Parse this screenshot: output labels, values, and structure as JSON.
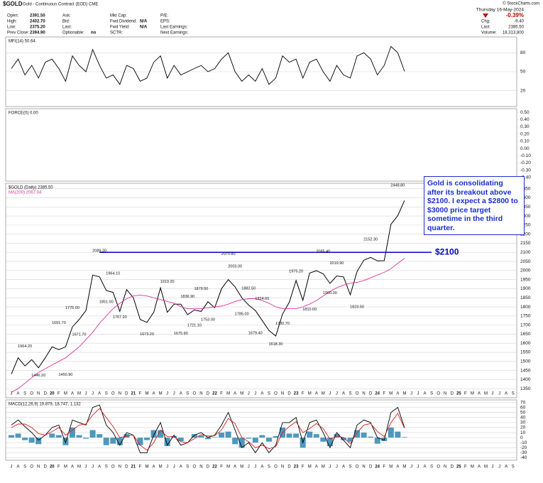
{
  "header": {
    "symbol": "$GOLD",
    "name": "Gold - Continuous Contract (EOD) CME",
    "source": "© StockCharts.com",
    "info": [
      [
        [
          "Open:",
          "2391.50"
        ],
        [
          "High:",
          "2402.70"
        ],
        [
          "Low:",
          "2375.20"
        ],
        [
          "Prev Close:",
          "2394.90"
        ]
      ],
      [
        [
          "Ask:"
        ],
        [
          "Bid:"
        ],
        [
          "Last:"
        ],
        [
          "Optionable:",
          "no"
        ]
      ],
      [
        [
          "Mkt Cap:"
        ],
        [
          "Fwd Dividend:",
          "N/A"
        ],
        [
          "Fwd Yield:",
          "N/A"
        ],
        [
          "SCTR:"
        ]
      ],
      [
        [
          "P/E:"
        ],
        [
          "EPS:"
        ],
        [
          "Last Earnings:"
        ],
        [
          "Next Earnings:"
        ]
      ]
    ],
    "date": "Thursday 16-May-2024",
    "change_pct": "-0.39%",
    "stats": [
      [
        "Chg:",
        "-9.40"
      ],
      [
        "Last:",
        "2385.50"
      ],
      [
        "Volume:",
        "18,313,800"
      ]
    ]
  },
  "chart_data": [
    {
      "type": "line",
      "grid": true,
      "x": [
        "2019-07",
        "2019-08",
        "2019-09",
        "2019-10",
        "2019-11",
        "2019-12",
        "2020-01",
        "2020-02",
        "2020-03",
        "2020-04",
        "2020-05",
        "2020-06",
        "2020-07",
        "2020-08",
        "2020-09",
        "2020-10",
        "2020-11",
        "2020-12",
        "2021-01",
        "2021-02",
        "2021-03",
        "2021-04",
        "2021-05",
        "2021-06",
        "2021-07",
        "2021-08",
        "2021-09",
        "2021-10",
        "2021-11",
        "2021-12",
        "2022-01",
        "2022-02",
        "2022-03",
        "2022-04",
        "2022-05",
        "2022-06",
        "2022-07",
        "2022-08",
        "2022-09",
        "2022-10",
        "2022-11",
        "2022-12",
        "2023-01",
        "2023-02",
        "2023-03",
        "2023-04",
        "2023-05",
        "2023-06",
        "2023-07",
        "2023-08",
        "2023-09",
        "2023-10",
        "2023-11",
        "2023-12",
        "2024-01",
        "2024-02",
        "2024-03",
        "2024-04",
        "2024-05"
      ],
      "series": [
        {
          "name": "MFI(14) 50.64",
          "color": "#000000",
          "values": [
            55,
            70,
            45,
            60,
            40,
            65,
            70,
            55,
            35,
            75,
            60,
            50,
            85,
            60,
            40,
            45,
            30,
            60,
            55,
            35,
            40,
            65,
            75,
            40,
            60,
            45,
            50,
            55,
            60,
            50,
            55,
            70,
            80,
            50,
            35,
            45,
            35,
            55,
            30,
            40,
            75,
            65,
            70,
            40,
            65,
            70,
            50,
            35,
            60,
            45,
            40,
            75,
            80,
            70,
            45,
            60,
            90,
            80,
            50.64
          ]
        }
      ],
      "ylim": [
        -5,
        105
      ],
      "yticks": [
        80,
        50,
        20
      ]
    },
    {
      "type": "line",
      "title": "FORCE(0) 0.00",
      "grid": false,
      "ylim": [
        -0.45,
        0.55
      ],
      "yticks": [
        {
          "value": 0.5,
          "label": "0.50"
        },
        {
          "value": 0.4,
          "label": "0.40"
        },
        {
          "value": 0.3,
          "label": "0.30"
        },
        {
          "value": 0.2,
          "label": "0.20"
        },
        {
          "value": 0.1,
          "label": "0.10"
        },
        {
          "value": 0,
          "label": "0.00"
        },
        {
          "value": -0.1,
          "label": "-0.10"
        },
        {
          "value": -0.2,
          "label": "-0.20"
        },
        {
          "value": -0.3,
          "label": "-0.30"
        },
        {
          "value": -0.4,
          "label": "-0.40"
        }
      ]
    },
    {
      "type": "line",
      "grid": true,
      "x": [
        "2019-07",
        "2019-08",
        "2019-09",
        "2019-10",
        "2019-11",
        "2019-12",
        "2020-01",
        "2020-02",
        "2020-03",
        "2020-04",
        "2020-05",
        "2020-06",
        "2020-07",
        "2020-08",
        "2020-09",
        "2020-10",
        "2020-11",
        "2020-12",
        "2021-01",
        "2021-02",
        "2021-03",
        "2021-04",
        "2021-05",
        "2021-06",
        "2021-07",
        "2021-08",
        "2021-09",
        "2021-10",
        "2021-11",
        "2021-12",
        "2022-01",
        "2022-02",
        "2022-03",
        "2022-04",
        "2022-05",
        "2022-06",
        "2022-07",
        "2022-08",
        "2022-09",
        "2022-10",
        "2022-11",
        "2022-12",
        "2023-01",
        "2023-02",
        "2023-03",
        "2023-04",
        "2023-05",
        "2023-06",
        "2023-07",
        "2023-08",
        "2023-09",
        "2023-10",
        "2023-11",
        "2023-12",
        "2024-01",
        "2024-02",
        "2024-03",
        "2024-04",
        "2024-05"
      ],
      "series": [
        {
          "name": "$GOLD (Daily) 2385.50",
          "color": "#000000",
          "values": [
            1430,
            1520,
            1475,
            1510,
            1465,
            1520,
            1580,
            1565,
            1580,
            1690,
            1730,
            1780,
            1975,
            1965,
            1890,
            1880,
            1775,
            1895,
            1850,
            1730,
            1715,
            1770,
            1905,
            1770,
            1815,
            1815,
            1757,
            1783,
            1775,
            1828,
            1795,
            1900,
            1950,
            1910,
            1850,
            1810,
            1780,
            1725,
            1670,
            1640,
            1760,
            1826,
            1945,
            1836,
            1986,
            1999,
            1982,
            1929,
            1970,
            1965,
            1866,
            1995,
            2057,
            2072,
            2053,
            2054,
            2254,
            2302,
            2385.5
          ]
        },
        {
          "name": "MA(200) 2067.04",
          "color": "#e0339a",
          "values": [
            1330,
            1350,
            1380,
            1410,
            1440,
            1460,
            1480,
            1500,
            1520,
            1550,
            1580,
            1620,
            1660,
            1710,
            1750,
            1790,
            1820,
            1845,
            1860,
            1865,
            1860,
            1850,
            1840,
            1830,
            1820,
            1800,
            1790,
            1790,
            1790,
            1795,
            1800,
            1805,
            1815,
            1830,
            1840,
            1845,
            1845,
            1835,
            1820,
            1800,
            1790,
            1790,
            1790,
            1800,
            1815,
            1835,
            1860,
            1885,
            1905,
            1920,
            1930,
            1935,
            1945,
            1960,
            1975,
            1990,
            2010,
            2040,
            2067.04
          ]
        }
      ],
      "ylim": [
        1300,
        2480
      ],
      "yticks": [
        2450,
        2400,
        2350,
        2300,
        2250,
        2200,
        2150,
        2100,
        2050,
        2000,
        1950,
        1900,
        1850,
        1800,
        1750,
        1700,
        1650,
        1600,
        1550,
        1500,
        1450,
        1400,
        1350
      ],
      "annotations": [
        {
          "x": "2019-09",
          "value": 1564.2,
          "label": "1564.20"
        },
        {
          "x": "2019-11",
          "value": 1446.2,
          "label": "1446.20"
        },
        {
          "x": "2020-02",
          "value": 1691.7,
          "label": "1691.70"
        },
        {
          "x": "2020-03",
          "value": 1450.9,
          "label": "1450.90"
        },
        {
          "x": "2020-04",
          "value": 1775,
          "label": "1775.00"
        },
        {
          "x": "2020-05",
          "value": 1671.7,
          "label": "1671.70"
        },
        {
          "x": "2020-08",
          "value": 2089.2,
          "label": "2089.20"
        },
        {
          "x": "2020-10",
          "value": 1964.1,
          "label": "1964.10"
        },
        {
          "x": "2020-09",
          "value": 1851,
          "label": "1851.00"
        },
        {
          "x": "2020-11",
          "value": 1767.2,
          "label": "1767.20"
        },
        {
          "x": "2021-03",
          "value": 1673.2,
          "label": "1673.20"
        },
        {
          "x": "2021-06",
          "value": 1919.2,
          "label": "1919.20"
        },
        {
          "x": "2021-08",
          "value": 1675.9,
          "label": "1675.90"
        },
        {
          "x": "2021-09",
          "value": 1836.9,
          "label": "1836.90"
        },
        {
          "x": "2021-10",
          "value": 1721.1,
          "label": "1721.10"
        },
        {
          "x": "2021-11",
          "value": 1879.5,
          "label": "1879.50"
        },
        {
          "x": "2021-12",
          "value": 1753,
          "label": "1753.00"
        },
        {
          "x": "2022-03",
          "value": 2070.8,
          "label": "2070.80"
        },
        {
          "x": "2022-04",
          "value": 2003,
          "label": "2003.00"
        },
        {
          "x": "2022-05",
          "value": 1785,
          "label": "1785.00"
        },
        {
          "x": "2022-06",
          "value": 1882.5,
          "label": "1882.50"
        },
        {
          "x": "2022-07",
          "value": 1679.4,
          "label": "1679.40"
        },
        {
          "x": "2022-08",
          "value": 1824.6,
          "label": "1824.60"
        },
        {
          "x": "2022-10",
          "value": 1618.3,
          "label": "1618.30"
        },
        {
          "x": "2022-11",
          "value": 1730.7,
          "label": "1730.70"
        },
        {
          "x": "2023-01",
          "value": 1975.2,
          "label": "1975.20"
        },
        {
          "x": "2023-03",
          "value": 1810.6,
          "label": "1810.60"
        },
        {
          "x": "2023-05",
          "value": 2085.4,
          "label": "2085.40"
        },
        {
          "x": "2023-06",
          "value": 1900,
          "label": "1900.00"
        },
        {
          "x": "2023-07",
          "value": 2019.9,
          "label": "2019.90"
        },
        {
          "x": "2023-10",
          "value": 1823.5,
          "label": "1823.50"
        },
        {
          "x": "2023-12",
          "value": 2152.3,
          "label": "2152.30"
        },
        {
          "x": "2024-04",
          "value": 2448.8,
          "label": "2448.80"
        }
      ],
      "hline": {
        "x": "2020-08",
        "value": 2100,
        "label": "$2100",
        "color": "#0000cc"
      },
      "note": "Gold is consolidating after its breakout above $2100. I expect a $2800 to $3000 price target sometime in the third quarter.",
      "xtick_labels": [
        "J",
        "A",
        "S",
        "O",
        "N",
        "D",
        "20",
        "F",
        "M",
        "A",
        "M",
        "J",
        "J",
        "A",
        "S",
        "O",
        "N",
        "D",
        "21",
        "F",
        "M",
        "A",
        "M",
        "J",
        "J",
        "A",
        "S",
        "O",
        "N",
        "D",
        "22",
        "F",
        "M",
        "A",
        "M",
        "J",
        "J",
        "A",
        "S",
        "O",
        "N",
        "D",
        "23",
        "F",
        "M",
        "A",
        "M",
        "J",
        "J",
        "A",
        "S",
        "O",
        "N",
        "D",
        "24",
        "F",
        "M",
        "A",
        "M",
        "J",
        "J",
        "A",
        "S",
        "O",
        "N",
        "D",
        "25",
        "F",
        "M",
        "A",
        "M",
        "J",
        "J",
        "A",
        "S"
      ]
    },
    {
      "type": "line",
      "title": "MACD(12,26,9) 19.879, 18.747, 1.132",
      "grid": true,
      "x": [
        "2019-07",
        "2019-08",
        "2019-09",
        "2019-10",
        "2019-11",
        "2019-12",
        "2020-01",
        "2020-02",
        "2020-03",
        "2020-04",
        "2020-05",
        "2020-06",
        "2020-07",
        "2020-08",
        "2020-09",
        "2020-10",
        "2020-11",
        "2020-12",
        "2021-01",
        "2021-02",
        "2021-03",
        "2021-04",
        "2021-05",
        "2021-06",
        "2021-07",
        "2021-08",
        "2021-09",
        "2021-10",
        "2021-11",
        "2021-12",
        "2022-01",
        "2022-02",
        "2022-03",
        "2022-04",
        "2022-05",
        "2022-06",
        "2022-07",
        "2022-08",
        "2022-09",
        "2022-10",
        "2022-11",
        "2022-12",
        "2023-01",
        "2023-02",
        "2023-03",
        "2023-04",
        "2023-05",
        "2023-06",
        "2023-07",
        "2023-08",
        "2023-09",
        "2023-10",
        "2023-11",
        "2023-12",
        "2024-01",
        "2024-02",
        "2024-03",
        "2024-04",
        "2024-05"
      ],
      "series": [
        {
          "type": "bar",
          "color": "#2f86b3",
          "values": [
            5,
            8,
            -5,
            -10,
            -13,
            0,
            8,
            5,
            -15,
            20,
            5,
            -2,
            15,
            7,
            -15,
            -12,
            -15,
            7,
            0,
            -15,
            -5,
            15,
            15,
            -17,
            3,
            -7,
            0,
            7,
            4,
            -3,
            1,
            10,
            12,
            -13,
            -20,
            -2,
            -10,
            5,
            -8,
            3,
            20,
            8,
            8,
            -20,
            12,
            7,
            -8,
            -17,
            7,
            -5,
            -8,
            15,
            10,
            2,
            -12,
            -7,
            20,
            12,
            1.132
          ]
        },
        {
          "color": "#000000",
          "values": [
            25,
            35,
            22,
            10,
            -5,
            5,
            20,
            25,
            -10,
            35,
            30,
            25,
            60,
            65,
            25,
            10,
            -15,
            10,
            5,
            -30,
            -30,
            5,
            30,
            -15,
            5,
            -15,
            -10,
            5,
            10,
            0,
            5,
            25,
            50,
            15,
            -20,
            -10,
            -30,
            -10,
            -30,
            -15,
            30,
            30,
            40,
            -10,
            30,
            35,
            10,
            -20,
            10,
            -5,
            -20,
            25,
            35,
            30,
            0,
            -5,
            50,
            60,
            19.879
          ]
        },
        {
          "color": "#d42020",
          "values": [
            20,
            27,
            27,
            20,
            8,
            5,
            12,
            20,
            5,
            15,
            25,
            27,
            45,
            58,
            40,
            22,
            0,
            3,
            5,
            -15,
            -25,
            -10,
            15,
            2,
            2,
            -8,
            -10,
            -2,
            6,
            3,
            4,
            15,
            38,
            28,
            0,
            -8,
            -20,
            -15,
            -22,
            -18,
            10,
            22,
            32,
            10,
            18,
            28,
            18,
            -3,
            3,
            0,
            -12,
            10,
            25,
            28,
            12,
            2,
            30,
            48,
            18.747
          ]
        }
      ],
      "ylim": [
        -45,
        75
      ],
      "yticks": [
        70,
        60,
        50,
        40,
        30,
        20,
        10,
        0,
        -10,
        -20,
        -30,
        -40
      ]
    }
  ]
}
